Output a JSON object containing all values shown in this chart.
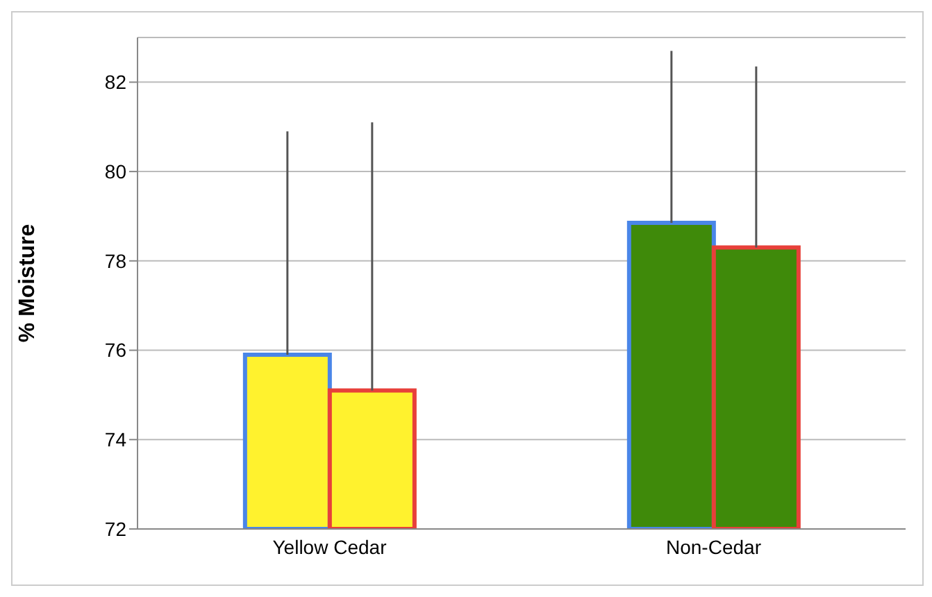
{
  "chart_data": {
    "type": "bar",
    "ylabel": "% Moisture",
    "categories": [
      "Yellow Cedar",
      "Non-Cedar"
    ],
    "series": [
      {
        "color": "#4a86e8",
        "colors": [
          "#fff22e",
          "#3f8a0a"
        ],
        "values": [
          75.9,
          78.85
        ],
        "errors": [
          [
            75.9,
            80.9
          ],
          [
            78.85,
            82.7
          ]
        ]
      },
      {
        "color": "#e8403a",
        "colors": [
          "#fff22e",
          "#3f8a0a"
        ],
        "values": [
          75.1,
          78.3
        ],
        "errors": [
          [
            75.1,
            81.1
          ],
          [
            78.3,
            82.35
          ]
        ]
      }
    ],
    "ylim": [
      72,
      83
    ],
    "yticks": [
      72,
      74,
      76,
      78,
      80,
      82
    ],
    "grid": "y",
    "legend": false
  }
}
